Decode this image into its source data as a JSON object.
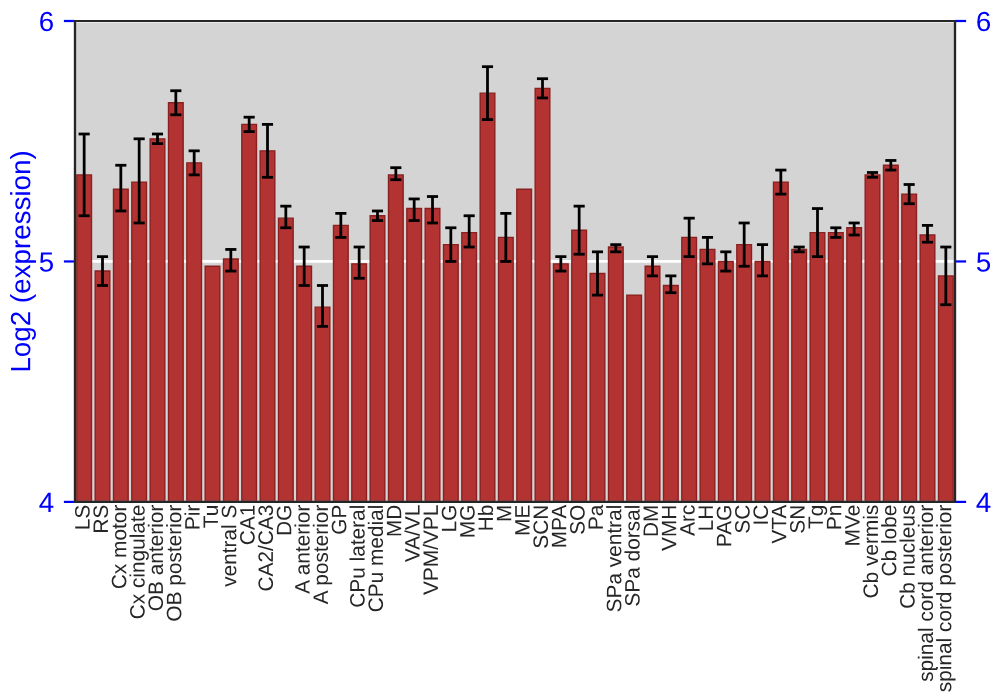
{
  "chart_data": {
    "type": "bar",
    "ylabel": "Log2 (expression)",
    "categories": [
      "LS",
      "RS",
      "Cx motor",
      "Cx cingulate",
      "OB anterior",
      "OB posterior",
      "Pir",
      "Tu",
      "ventral S",
      "CA1",
      "CA2/CA3",
      "DG",
      "A anterior",
      "A posterior",
      "GP",
      "CPu lateral",
      "CPu medial",
      "MD",
      "VA/VL",
      "VPM/VPL",
      "LG",
      "MG",
      "Hb",
      "M",
      "ME",
      "SCN",
      "MPA",
      "SO",
      "Pa",
      "SPa ventral",
      "SPa dorsal",
      "DM",
      "VMH",
      "Arc",
      "LH",
      "PAG",
      "SC",
      "IC",
      "VTA",
      "SN",
      "Tg",
      "Pn",
      "MVe",
      "Cb vermis",
      "Cb lobe",
      "Cb nucleus",
      "spinal cord anterior",
      "spinal cord posterior"
    ],
    "values": [
      5.36,
      4.96,
      5.3,
      5.33,
      5.51,
      5.66,
      5.41,
      4.98,
      5.01,
      5.57,
      5.46,
      5.18,
      4.98,
      4.81,
      5.15,
      4.99,
      5.19,
      5.36,
      5.22,
      5.22,
      5.07,
      5.12,
      5.7,
      5.1,
      5.3,
      5.72,
      4.99,
      5.13,
      4.95,
      5.06,
      4.86,
      4.98,
      4.9,
      5.1,
      5.05,
      5.0,
      5.07,
      5.0,
      5.33,
      5.05,
      5.12,
      5.12,
      5.14,
      5.36,
      5.4,
      5.28,
      5.11,
      4.94
    ],
    "errors": [
      [
        5.19,
        5.53
      ],
      [
        4.9,
        5.02
      ],
      [
        5.21,
        5.4
      ],
      [
        5.16,
        5.51
      ],
      [
        5.49,
        5.53
      ],
      [
        5.61,
        5.71
      ],
      [
        5.36,
        5.46
      ],
      null,
      [
        4.96,
        5.05
      ],
      [
        5.54,
        5.6
      ],
      [
        5.35,
        5.57
      ],
      [
        5.14,
        5.23
      ],
      [
        4.9,
        5.06
      ],
      [
        4.73,
        4.9
      ],
      [
        5.1,
        5.2
      ],
      [
        4.93,
        5.06
      ],
      [
        5.17,
        5.21
      ],
      [
        5.34,
        5.39
      ],
      [
        5.17,
        5.26
      ],
      [
        5.16,
        5.27
      ],
      [
        5.0,
        5.14
      ],
      [
        5.06,
        5.19
      ],
      [
        5.59,
        5.81
      ],
      [
        5.0,
        5.2
      ],
      null,
      [
        5.68,
        5.76
      ],
      [
        4.96,
        5.02
      ],
      [
        5.03,
        5.23
      ],
      [
        4.86,
        5.04
      ],
      [
        5.04,
        5.07
      ],
      null,
      [
        4.94,
        5.02
      ],
      [
        4.87,
        4.94
      ],
      [
        5.02,
        5.18
      ],
      [
        4.99,
        5.1
      ],
      [
        4.96,
        5.04
      ],
      [
        4.98,
        5.16
      ],
      [
        4.94,
        5.07
      ],
      [
        5.28,
        5.38
      ],
      [
        5.04,
        5.06
      ],
      [
        5.02,
        5.22
      ],
      [
        5.1,
        5.14
      ],
      [
        5.11,
        5.16
      ],
      [
        5.35,
        5.37
      ],
      [
        5.38,
        5.42
      ],
      [
        5.24,
        5.32
      ],
      [
        5.08,
        5.15
      ],
      [
        4.82,
        5.06
      ]
    ],
    "color": "#b33333",
    "ylim": [
      4,
      6
    ],
    "yticks": [
      4,
      5,
      6
    ],
    "y2lim": [
      4,
      6
    ],
    "y2ticks": [
      4,
      5,
      6
    ],
    "grid": "y",
    "legend": false
  }
}
